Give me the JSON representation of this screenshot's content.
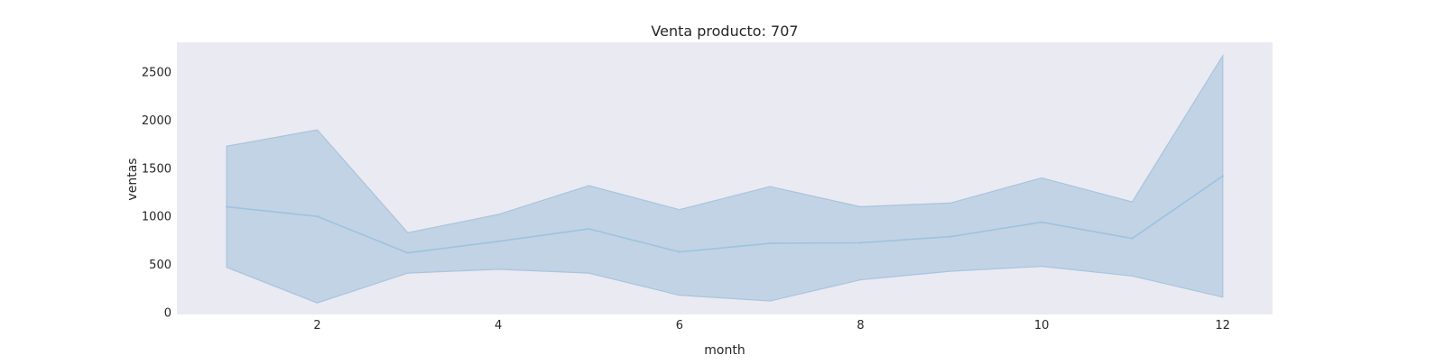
{
  "chart_data": {
    "type": "area",
    "title": "Venta producto: 707",
    "xlabel": "month",
    "ylabel": "ventas",
    "xlim": [
      0.45,
      12.55
    ],
    "ylim": [
      -20,
      2810
    ],
    "xticks": [
      2,
      4,
      6,
      8,
      10,
      12
    ],
    "yticks": [
      0,
      500,
      1000,
      1500,
      2000,
      2500
    ],
    "grid": false,
    "legend": "none",
    "colors": {
      "background": "#eaeaf2",
      "line": "#9ec3df",
      "band": "#c2d3e5",
      "band_edge": "#a9c4de"
    },
    "x": [
      1,
      2,
      3,
      4,
      5,
      6,
      7,
      8,
      9,
      10,
      11,
      12
    ],
    "series": [
      {
        "values": [
          1100,
          1000,
          620,
          740,
          870,
          630,
          720,
          725,
          790,
          940,
          770,
          1420
        ],
        "upper": [
          1730,
          1900,
          830,
          1020,
          1320,
          1070,
          1310,
          1100,
          1140,
          1400,
          1150,
          2670
        ],
        "lower": [
          470,
          100,
          410,
          450,
          410,
          180,
          120,
          340,
          430,
          480,
          380,
          160
        ]
      }
    ]
  }
}
